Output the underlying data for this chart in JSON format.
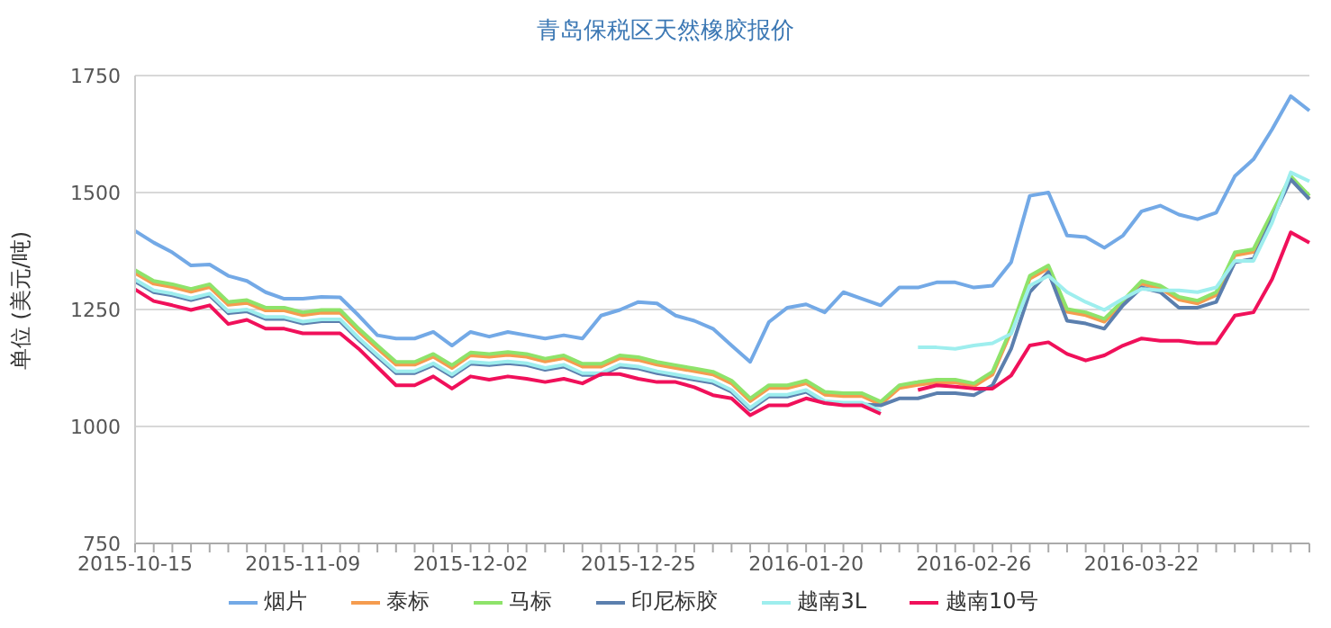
{
  "chart_data": {
    "type": "line",
    "title": "青岛保税区天然橡胶报价",
    "ylabel": "单位 (美元/吨)",
    "categories": [
      "2015-10-15",
      null,
      null,
      null,
      null,
      null,
      null,
      null,
      null,
      "2015-11-09",
      null,
      null,
      null,
      null,
      null,
      null,
      null,
      null,
      "2015-12-02",
      null,
      null,
      null,
      null,
      null,
      null,
      null,
      null,
      "2015-12-25",
      null,
      null,
      null,
      null,
      null,
      null,
      null,
      null,
      "2016-01-20",
      null,
      null,
      null,
      null,
      null,
      null,
      null,
      null,
      "2016-02-26",
      null,
      null,
      null,
      null,
      null,
      null,
      null,
      null,
      "2016-03-22",
      null,
      null,
      null,
      null,
      null,
      null,
      null,
      null,
      null
    ],
    "series": [
      {
        "name": "烟片",
        "color": "#73a9e6",
        "values": [
          1418,
          1393,
          1372,
          1344,
          1346,
          1322,
          1311,
          1287,
          1273,
          1273,
          1277,
          1276,
          1237,
          1195,
          1188,
          1188,
          1202,
          1173,
          1202,
          1192,
          1202,
          1195,
          1188,
          1195,
          1188,
          1237,
          1249,
          1266,
          1263,
          1237,
          1226,
          1209,
          1173,
          1138,
          1223,
          1254,
          1261,
          1244,
          1287,
          1273,
          1259,
          1297,
          1297,
          1308,
          1308,
          1297,
          1301,
          1351,
          1493,
          1500,
          1408,
          1405,
          1382,
          1408,
          1460,
          1472,
          1453,
          1443,
          1457,
          1535,
          1571,
          1635,
          1706,
          1675
        ]
      },
      {
        "name": "泰标",
        "color": "#f59c4f",
        "values": [
          1328,
          1305,
          1298,
          1288,
          1298,
          1260,
          1264,
          1248,
          1248,
          1238,
          1243,
          1243,
          1203,
          1167,
          1132,
          1132,
          1149,
          1125,
          1152,
          1149,
          1153,
          1149,
          1139,
          1146,
          1128,
          1128,
          1146,
          1142,
          1132,
          1125,
          1118,
          1111,
          1092,
          1054,
          1082,
          1082,
          1092,
          1068,
          1065,
          1065,
          1047,
          1082,
          1089,
          1094,
          1094,
          1086,
          1111,
          1203,
          1316,
          1338,
          1245,
          1238,
          1224,
          1263,
          1305,
          1295,
          1271,
          1263,
          1281,
          1366,
          1373,
          1451,
          1529,
          1487
        ]
      },
      {
        "name": "马标",
        "color": "#8ee36a",
        "values": [
          1334,
          1311,
          1304,
          1294,
          1304,
          1266,
          1270,
          1254,
          1254,
          1244,
          1249,
          1249,
          1209,
          1173,
          1138,
          1138,
          1155,
          1131,
          1158,
          1155,
          1159,
          1155,
          1145,
          1152,
          1134,
          1134,
          1152,
          1148,
          1138,
          1131,
          1124,
          1117,
          1098,
          1060,
          1088,
          1088,
          1098,
          1074,
          1071,
          1071,
          1053,
          1088,
          1095,
          1100,
          1100,
          1092,
          1117,
          1209,
          1322,
          1344,
          1251,
          1244,
          1230,
          1269,
          1311,
          1301,
          1277,
          1269,
          1287,
          1372,
          1379,
          1457,
          1535,
          1493
        ]
      },
      {
        "name": "印尼标胶",
        "color": "#5b7fae",
        "values": [
          1310,
          1287,
          1280,
          1270,
          1280,
          1242,
          1246,
          1230,
          1230,
          1220,
          1225,
          1225,
          1185,
          1149,
          1114,
          1114,
          1131,
          1107,
          1134,
          1131,
          1135,
          1131,
          1121,
          1128,
          1110,
          1110,
          1128,
          1124,
          1114,
          1107,
          1100,
          1093,
          1074,
          1036,
          1064,
          1064,
          1074,
          1050,
          1047,
          1047,
          1045,
          1060,
          1060,
          1071,
          1071,
          1067,
          1088,
          1166,
          1287,
          1330,
          1226,
          1220,
          1209,
          1259,
          1297,
          1287,
          1254,
          1254,
          1266,
          1351,
          1358,
          1443,
          1528,
          1486
        ]
      },
      {
        "name": "越南3L",
        "color": "#9eeeee",
        "values": [
          1314,
          1291,
          1284,
          1274,
          1284,
          1246,
          1250,
          1234,
          1234,
          1224,
          1229,
          1229,
          1189,
          1153,
          1118,
          1118,
          1135,
          1111,
          1138,
          1135,
          1139,
          1135,
          1125,
          1132,
          1114,
          1114,
          1132,
          1128,
          1118,
          1111,
          1104,
          1097,
          1078,
          1040,
          1068,
          1068,
          1078,
          1054,
          1051,
          1051,
          1033,
          null,
          1169,
          1169,
          1166,
          1173,
          1178,
          1198,
          1301,
          1322,
          1287,
          1266,
          1249,
          1273,
          1294,
          1291,
          1291,
          1287,
          1297,
          1354,
          1354,
          1436,
          1543,
          1524
        ]
      },
      {
        "name": "越南10号",
        "color": "#f0105a",
        "values": [
          1293,
          1268,
          1259,
          1249,
          1259,
          1219,
          1228,
          1209,
          1209,
          1199,
          1199,
          1199,
          1166,
          1127,
          1088,
          1088,
          1107,
          1081,
          1107,
          1100,
          1107,
          1102,
          1095,
          1102,
          1092,
          1112,
          1112,
          1102,
          1095,
          1095,
          1084,
          1067,
          1060,
          1024,
          1045,
          1045,
          1060,
          1050,
          1045,
          1045,
          1027,
          null,
          1078,
          1088,
          1085,
          1081,
          1081,
          1109,
          1173,
          1180,
          1155,
          1141,
          1152,
          1173,
          1188,
          1183,
          1183,
          1178,
          1178,
          1237,
          1244,
          1315,
          1415,
          1393
        ]
      }
    ],
    "ylim": [
      750,
      1750
    ],
    "yticks": [
      750,
      1000,
      1250,
      1500,
      1750
    ],
    "grid": "y",
    "legend": "bottom",
    "marker": "none",
    "line_style": "solid"
  }
}
